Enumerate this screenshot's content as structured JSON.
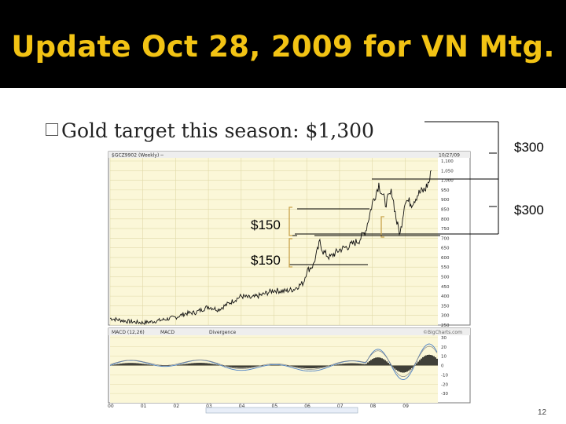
{
  "slide": {
    "title": "Update Oct 28, 2009 for VN Mtg.",
    "bullet": "Gold target this season: $1,300",
    "page_number": "12"
  },
  "annotations": {
    "upper_move": "$300",
    "lower_move": "$300",
    "left_upper": "$150",
    "left_lower": "$150"
  },
  "colors": {
    "title_bg": "#000000",
    "title_text": "#f2c314",
    "chart_bg": "#fbf7d8",
    "price_line": "#111111",
    "macd_line": "#4a7fc4",
    "annotation_bracket": "#c8a24a"
  },
  "chart_data": [
    {
      "type": "line",
      "header_symbol": "$GCZ9902 (Weekly) ─",
      "header_date": "10/27/09",
      "watermark": "©BigCharts.com",
      "ylim": [
        250,
        1100
      ],
      "y_ticks": [
        "1,100",
        "1,050",
        "1,000",
        "950",
        "900",
        "850",
        "800",
        "750",
        "700",
        "650",
        "600",
        "550",
        "500",
        "450",
        "400",
        "350",
        "300",
        "250"
      ],
      "y_tick_values": [
        1100,
        1050,
        1000,
        950,
        900,
        850,
        800,
        750,
        700,
        650,
        600,
        550,
        500,
        450,
        400,
        350,
        300,
        250
      ],
      "x_ticks": [
        "00",
        "01",
        "02",
        "03",
        "04",
        "05",
        "06",
        "07",
        "08",
        "09"
      ],
      "x": [
        2000.0,
        2000.5,
        2001.0,
        2001.3,
        2001.7,
        2002.0,
        2002.3,
        2002.6,
        2003.0,
        2003.3,
        2003.6,
        2004.0,
        2004.3,
        2004.6,
        2005.0,
        2005.3,
        2005.6,
        2005.9,
        2006.0,
        2006.2,
        2006.4,
        2006.5,
        2006.7,
        2007.0,
        2007.3,
        2007.6,
        2007.8,
        2008.0,
        2008.1,
        2008.2,
        2008.4,
        2008.6,
        2008.75,
        2008.85,
        2009.0,
        2009.2,
        2009.4,
        2009.6,
        2009.75,
        2009.8
      ],
      "y": [
        285,
        270,
        262,
        268,
        280,
        290,
        310,
        315,
        345,
        330,
        360,
        400,
        390,
        405,
        430,
        425,
        435,
        470,
        530,
        560,
        680,
        630,
        600,
        640,
        660,
        690,
        740,
        880,
        930,
        980,
        880,
        940,
        780,
        720,
        900,
        880,
        930,
        950,
        1000,
        1050
      ]
    },
    {
      "type": "line",
      "legend": [
        "MACD (12,26)",
        "MACD",
        "Divergence"
      ],
      "ylim": [
        -40,
        40
      ],
      "y_ticks": [
        "30",
        "20",
        "10",
        "0",
        "-10",
        "-20",
        "-30"
      ],
      "y_tick_values": [
        30,
        20,
        10,
        0,
        -10,
        -20,
        -30
      ]
    }
  ]
}
